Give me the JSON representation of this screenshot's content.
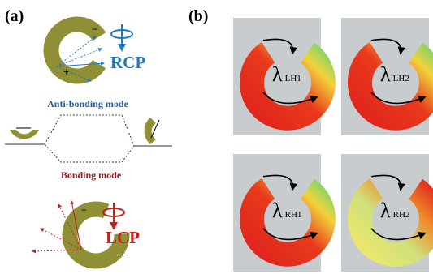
{
  "panels": {
    "a": "(a)",
    "b": "(b)"
  },
  "top": {
    "polarization": "RCP",
    "signs": [
      "−",
      "+"
    ]
  },
  "modes": {
    "anti_bonding": "Anti-bonding mode",
    "bonding": "Bonding mode"
  },
  "bottom": {
    "polarization": "LCP",
    "signs": [
      "−",
      "+"
    ]
  },
  "maps": [
    {
      "symbol": "λ",
      "sub": "LH1"
    },
    {
      "symbol": "λ",
      "sub": "LH2"
    },
    {
      "symbol": "λ",
      "sub": "RH1"
    },
    {
      "symbol": "λ",
      "sub": "RH2"
    }
  ]
}
